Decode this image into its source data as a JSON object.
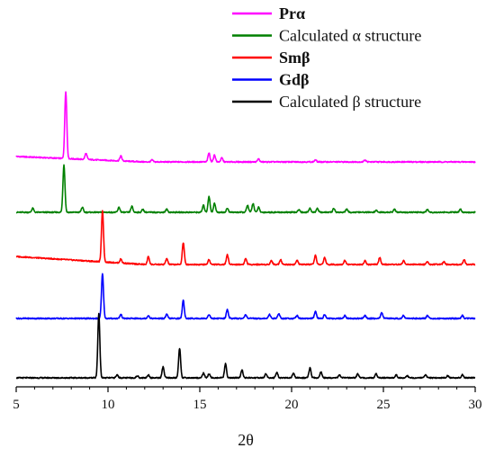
{
  "chart_data": {
    "type": "line",
    "title": "",
    "xlabel": "2θ",
    "ylabel": "",
    "xlim": [
      5,
      30
    ],
    "x_ticks": [
      5,
      10,
      15,
      20,
      25,
      30
    ],
    "x_tick_labels": [
      "5",
      "10",
      "15",
      "20",
      "25",
      "30"
    ],
    "y_axis_visible": false,
    "grid": false,
    "stacked_offset": true,
    "legend_position": "top-right",
    "series": [
      {
        "name": "Prα",
        "bold_label": true,
        "color": "#ff00ff",
        "baseline": 0.055,
        "offset": 4,
        "peaks": [
          {
            "x": 7.7,
            "h": 0.68
          },
          {
            "x": 8.8,
            "h": 0.06
          },
          {
            "x": 10.7,
            "h": 0.05
          },
          {
            "x": 12.4,
            "h": 0.02
          },
          {
            "x": 15.5,
            "h": 0.09
          },
          {
            "x": 15.8,
            "h": 0.07
          },
          {
            "x": 16.2,
            "h": 0.04
          },
          {
            "x": 18.2,
            "h": 0.03
          },
          {
            "x": 21.3,
            "h": 0.02
          },
          {
            "x": 24.0,
            "h": 0.02
          }
        ]
      },
      {
        "name": "Calculated α structure",
        "bold_label": false,
        "color": "#008000",
        "baseline": 0.0,
        "offset": 3,
        "peaks": [
          {
            "x": 5.9,
            "h": 0.04
          },
          {
            "x": 7.6,
            "h": 0.48
          },
          {
            "x": 8.6,
            "h": 0.05
          },
          {
            "x": 10.6,
            "h": 0.05
          },
          {
            "x": 11.3,
            "h": 0.06
          },
          {
            "x": 11.9,
            "h": 0.03
          },
          {
            "x": 13.2,
            "h": 0.03
          },
          {
            "x": 15.2,
            "h": 0.07
          },
          {
            "x": 15.5,
            "h": 0.16
          },
          {
            "x": 15.8,
            "h": 0.09
          },
          {
            "x": 16.5,
            "h": 0.04
          },
          {
            "x": 17.6,
            "h": 0.07
          },
          {
            "x": 17.9,
            "h": 0.09
          },
          {
            "x": 18.2,
            "h": 0.05
          },
          {
            "x": 20.4,
            "h": 0.03
          },
          {
            "x": 21.0,
            "h": 0.04
          },
          {
            "x": 21.4,
            "h": 0.04
          },
          {
            "x": 22.3,
            "h": 0.04
          },
          {
            "x": 23.0,
            "h": 0.03
          },
          {
            "x": 24.6,
            "h": 0.02
          },
          {
            "x": 25.6,
            "h": 0.03
          },
          {
            "x": 27.4,
            "h": 0.03
          },
          {
            "x": 29.2,
            "h": 0.03
          }
        ]
      },
      {
        "name": "Smβ",
        "bold_label": true,
        "color": "#ff0000",
        "baseline": 0.08,
        "offset": 2,
        "peaks": [
          {
            "x": 9.7,
            "h": 0.52
          },
          {
            "x": 10.7,
            "h": 0.04
          },
          {
            "x": 12.2,
            "h": 0.08
          },
          {
            "x": 13.2,
            "h": 0.06
          },
          {
            "x": 14.1,
            "h": 0.22
          },
          {
            "x": 15.5,
            "h": 0.05
          },
          {
            "x": 16.5,
            "h": 0.1
          },
          {
            "x": 17.5,
            "h": 0.06
          },
          {
            "x": 18.9,
            "h": 0.04
          },
          {
            "x": 19.4,
            "h": 0.05
          },
          {
            "x": 20.3,
            "h": 0.04
          },
          {
            "x": 21.3,
            "h": 0.09
          },
          {
            "x": 21.8,
            "h": 0.07
          },
          {
            "x": 22.9,
            "h": 0.04
          },
          {
            "x": 24.0,
            "h": 0.04
          },
          {
            "x": 24.8,
            "h": 0.07
          },
          {
            "x": 26.1,
            "h": 0.04
          },
          {
            "x": 27.4,
            "h": 0.03
          },
          {
            "x": 28.3,
            "h": 0.03
          },
          {
            "x": 29.4,
            "h": 0.05
          }
        ]
      },
      {
        "name": "Gdβ",
        "bold_label": true,
        "color": "#0000ff",
        "baseline": 0.0,
        "offset": 1,
        "peaks": [
          {
            "x": 9.7,
            "h": 0.45
          },
          {
            "x": 10.7,
            "h": 0.04
          },
          {
            "x": 12.2,
            "h": 0.03
          },
          {
            "x": 13.2,
            "h": 0.04
          },
          {
            "x": 14.1,
            "h": 0.18
          },
          {
            "x": 15.5,
            "h": 0.04
          },
          {
            "x": 16.5,
            "h": 0.09
          },
          {
            "x": 17.5,
            "h": 0.04
          },
          {
            "x": 18.8,
            "h": 0.04
          },
          {
            "x": 19.3,
            "h": 0.05
          },
          {
            "x": 20.3,
            "h": 0.03
          },
          {
            "x": 21.3,
            "h": 0.07
          },
          {
            "x": 21.8,
            "h": 0.04
          },
          {
            "x": 22.9,
            "h": 0.03
          },
          {
            "x": 24.0,
            "h": 0.03
          },
          {
            "x": 24.9,
            "h": 0.06
          },
          {
            "x": 26.1,
            "h": 0.03
          },
          {
            "x": 27.4,
            "h": 0.03
          },
          {
            "x": 29.3,
            "h": 0.03
          }
        ]
      },
      {
        "name": "Calculated β structure",
        "bold_label": false,
        "color": "#000000",
        "baseline": 0.0,
        "offset": 0,
        "peaks": [
          {
            "x": 9.5,
            "h": 0.65
          },
          {
            "x": 10.5,
            "h": 0.03
          },
          {
            "x": 11.6,
            "h": 0.02
          },
          {
            "x": 12.2,
            "h": 0.03
          },
          {
            "x": 13.0,
            "h": 0.11
          },
          {
            "x": 13.9,
            "h": 0.3
          },
          {
            "x": 15.2,
            "h": 0.05
          },
          {
            "x": 15.5,
            "h": 0.04
          },
          {
            "x": 16.4,
            "h": 0.14
          },
          {
            "x": 17.3,
            "h": 0.08
          },
          {
            "x": 18.6,
            "h": 0.04
          },
          {
            "x": 19.2,
            "h": 0.05
          },
          {
            "x": 20.1,
            "h": 0.05
          },
          {
            "x": 21.0,
            "h": 0.1
          },
          {
            "x": 21.6,
            "h": 0.06
          },
          {
            "x": 22.6,
            "h": 0.03
          },
          {
            "x": 23.6,
            "h": 0.04
          },
          {
            "x": 24.6,
            "h": 0.04
          },
          {
            "x": 25.7,
            "h": 0.03
          },
          {
            "x": 26.3,
            "h": 0.02
          },
          {
            "x": 27.3,
            "h": 0.03
          },
          {
            "x": 28.5,
            "h": 0.02
          },
          {
            "x": 29.3,
            "h": 0.03
          }
        ]
      }
    ]
  }
}
